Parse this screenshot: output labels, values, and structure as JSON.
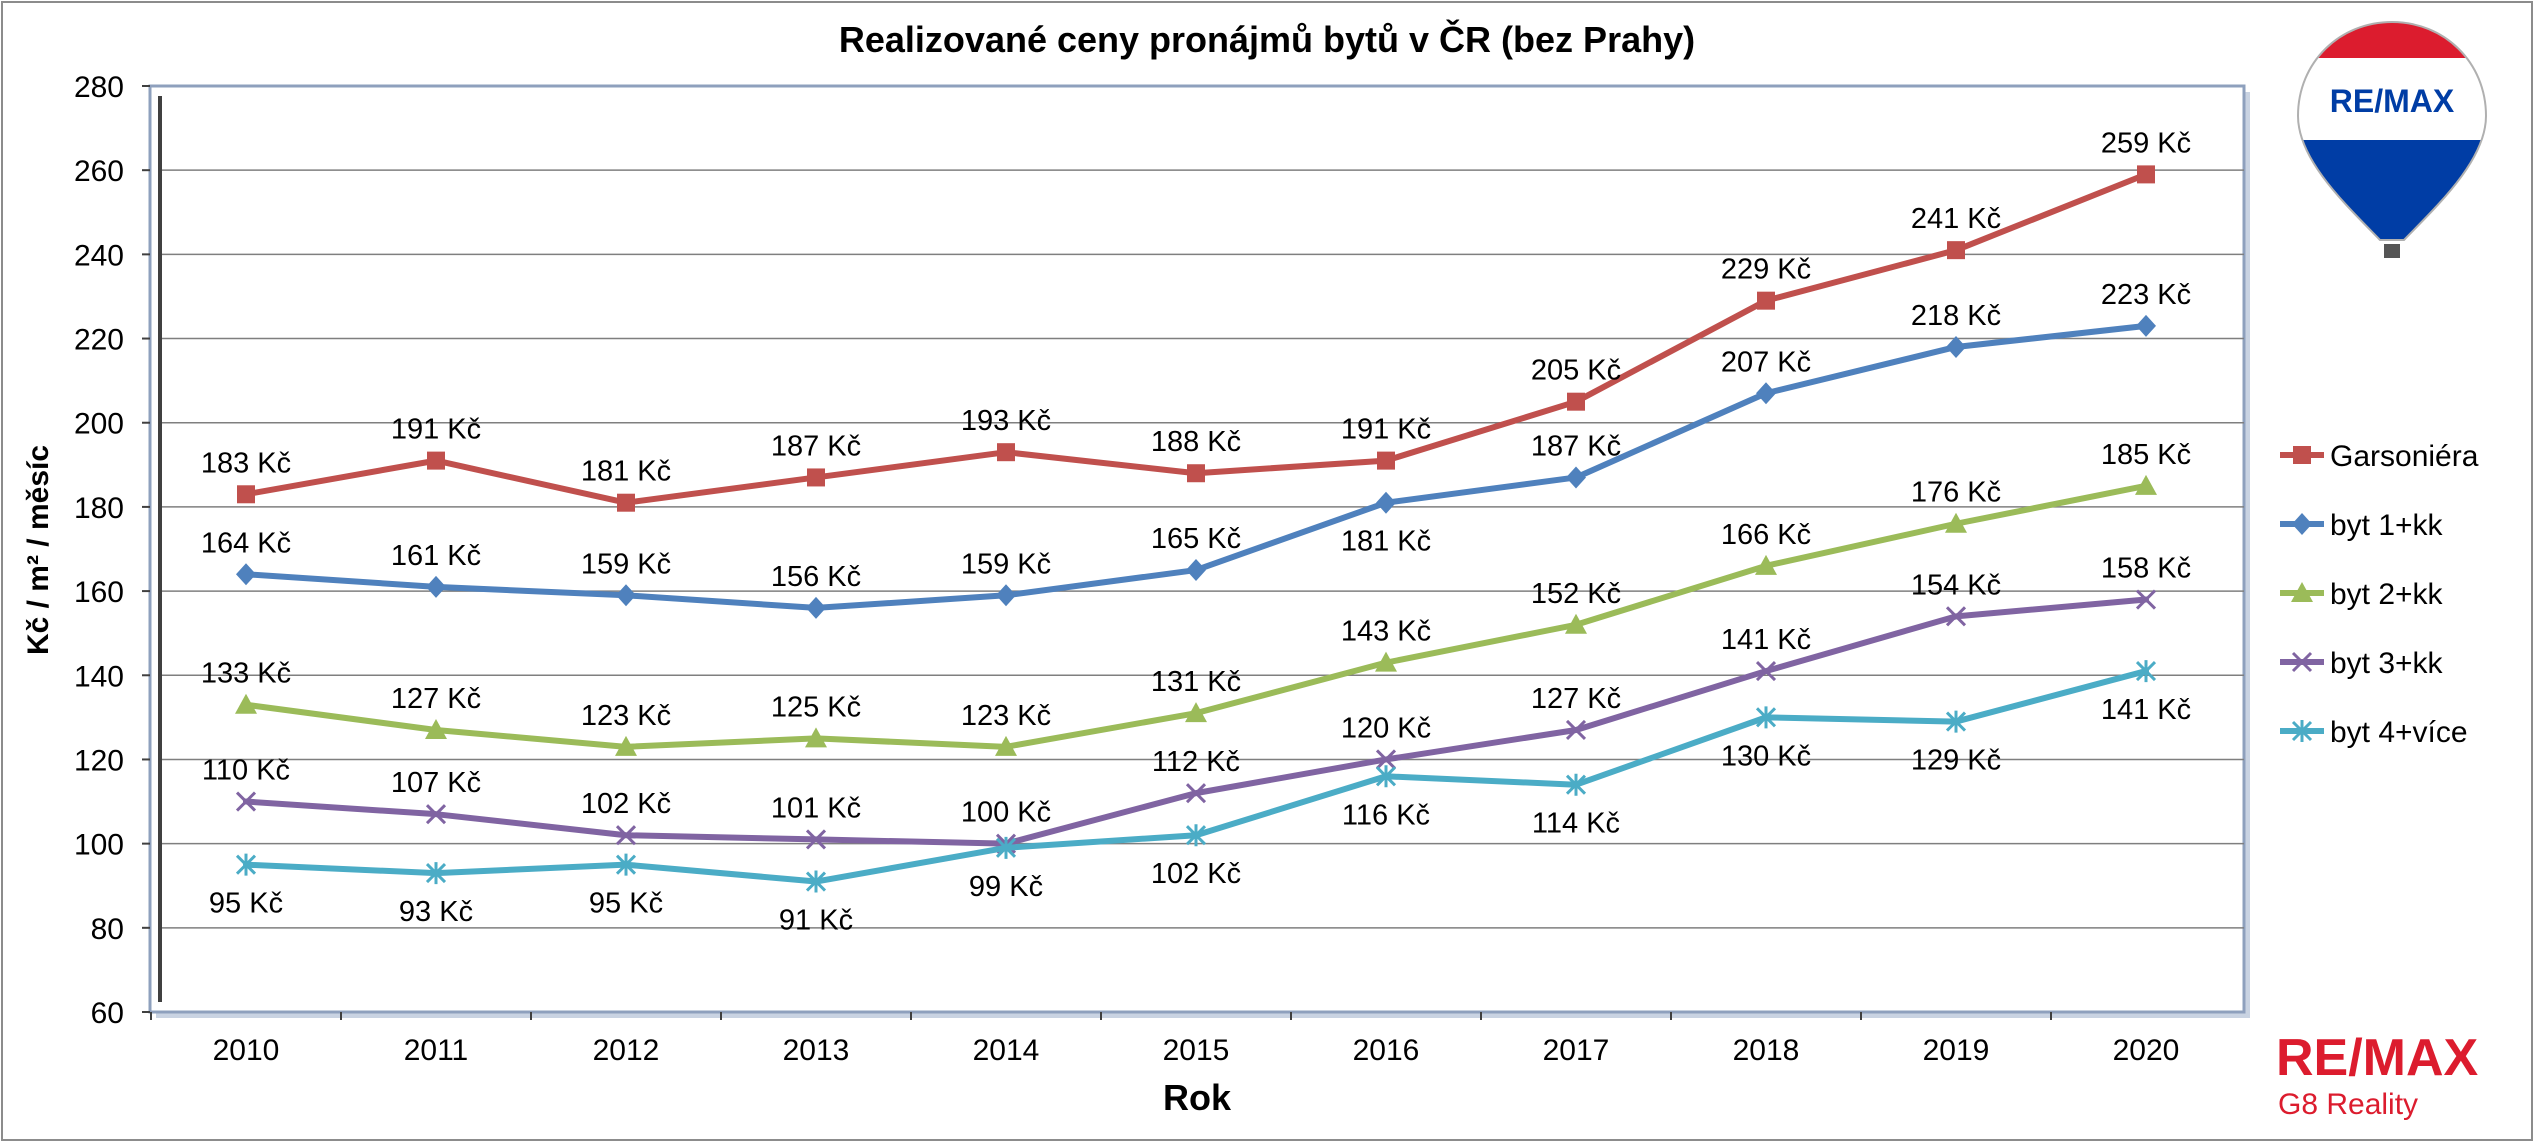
{
  "chart_data": {
    "type": "line",
    "title": "Realizované ceny pronájmů bytů v ČR (bez Prahy)",
    "xlabel": "Rok",
    "ylabel": "Kč / m² / měsíc",
    "ylim": [
      60,
      280
    ],
    "yticks": [
      60,
      80,
      100,
      120,
      140,
      160,
      180,
      200,
      220,
      240,
      260,
      280
    ],
    "categories": [
      "2010",
      "2011",
      "2012",
      "2013",
      "2014",
      "2015",
      "2016",
      "2017",
      "2018",
      "2019",
      "2020"
    ],
    "grid": true,
    "legend_position": "right",
    "value_suffix": " Kč",
    "series": [
      {
        "name": "Garsoniéra",
        "color": "#C0504D",
        "marker": "square",
        "values": [
          183,
          191,
          181,
          187,
          193,
          188,
          191,
          205,
          229,
          241,
          259
        ],
        "label_pos": [
          "a",
          "a",
          "a",
          "a",
          "a",
          "a",
          "a",
          "a",
          "a",
          "a",
          "a"
        ]
      },
      {
        "name": "byt 1+kk",
        "color": "#4F81BD",
        "marker": "diamond",
        "values": [
          164,
          161,
          159,
          156,
          159,
          165,
          181,
          187,
          207,
          218,
          223
        ],
        "label_pos": [
          "a",
          "a",
          "a",
          "a",
          "a",
          "a",
          "b",
          "a",
          "a",
          "a",
          "a"
        ]
      },
      {
        "name": "byt 2+kk",
        "color": "#9BBB59",
        "marker": "triangle",
        "values": [
          133,
          127,
          123,
          125,
          123,
          131,
          143,
          152,
          166,
          176,
          185
        ],
        "label_pos": [
          "a",
          "a",
          "a",
          "a",
          "a",
          "a",
          "a",
          "a",
          "a",
          "a",
          "a"
        ]
      },
      {
        "name": "byt 3+kk",
        "color": "#8064A2",
        "marker": "x",
        "values": [
          110,
          107,
          102,
          101,
          100,
          112,
          120,
          127,
          141,
          154,
          158
        ],
        "label_pos": [
          "a",
          "a",
          "a",
          "a",
          "a",
          "a",
          "a",
          "a",
          "a",
          "a",
          "a"
        ]
      },
      {
        "name": "byt 4+více",
        "color": "#4BACC6",
        "marker": "star",
        "values": [
          95,
          93,
          95,
          91,
          99,
          102,
          116,
          114,
          130,
          129,
          141
        ],
        "label_pos": [
          "b",
          "b",
          "b",
          "b",
          "b",
          "b",
          "b",
          "b",
          "b",
          "b",
          "b"
        ]
      }
    ]
  },
  "branding": {
    "balloon_text": "RE/MAX",
    "logo_text": "RE/MAX",
    "logo_subtitle": "G8 Reality",
    "brand_red": "#DC1C2E",
    "brand_blue": "#003DA5"
  }
}
